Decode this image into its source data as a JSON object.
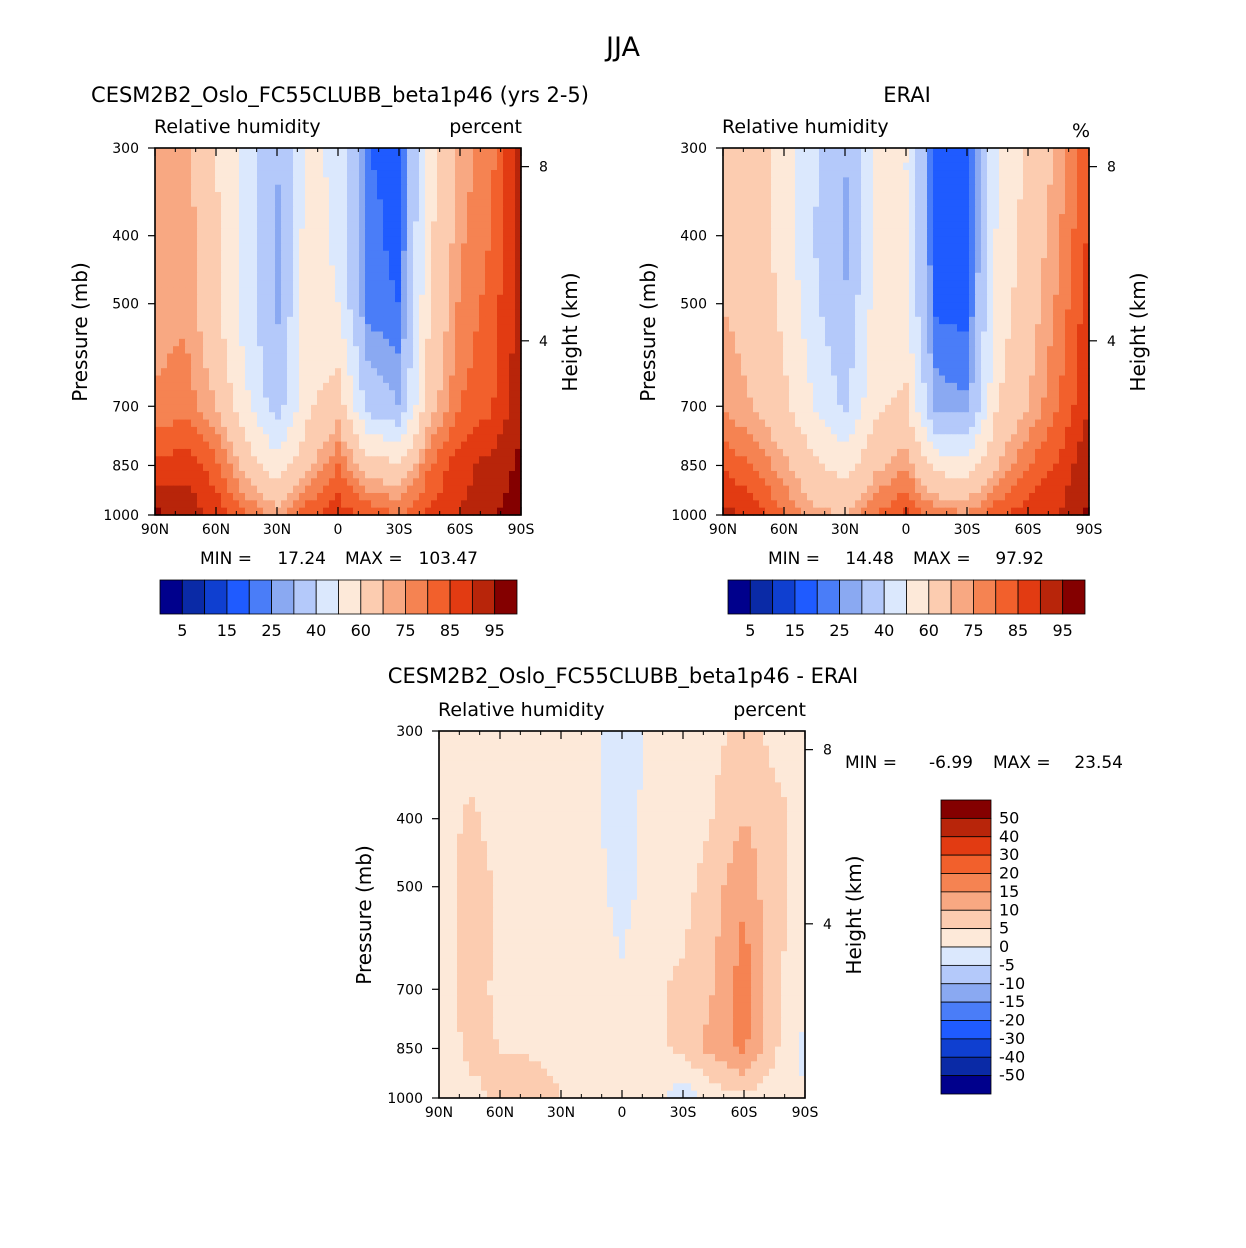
{
  "figure_title": "JJA",
  "colors": {
    "rh_levels": [
      "#00008c",
      "#0a2aa6",
      "#0f3fd0",
      "#1f5bff",
      "#4a7df8",
      "#8aa9f2",
      "#b4c9fa",
      "#dbe8fd",
      "#fde9d9",
      "#fcccb0",
      "#f8a882",
      "#f58352",
      "#f2602c",
      "#e23b12",
      "#b8250a",
      "#840000"
    ],
    "diff_levels": [
      "#00008c",
      "#0a2aa6",
      "#0f3fd0",
      "#1f5bff",
      "#4a7df8",
      "#8aa9f2",
      "#b4c9fa",
      "#dbe8fd",
      "#fde9d9",
      "#fcccb0",
      "#f8a882",
      "#f58352",
      "#f2602c",
      "#e23b12",
      "#b8250a",
      "#840000"
    ]
  },
  "chart_data": [
    {
      "name": "model",
      "type": "heatmap",
      "title": "CESM2B2_Oslo_FC55CLUBB_beta1p46 (yrs 2-5)",
      "left_subtitle": "Relative humidity",
      "right_subtitle": "percent",
      "xlabel": "",
      "ylabel": "Pressure (mb)",
      "y2label": "Height (km)",
      "x_ticks": [
        "90N",
        "60N",
        "30N",
        "0",
        "30S",
        "60S",
        "90S"
      ],
      "y_ticks": [
        "300",
        "400",
        "500",
        "700",
        "850",
        "1000"
      ],
      "y_tick_values": [
        300,
        400,
        500,
        700,
        850,
        1000
      ],
      "y2_ticks": [
        "8",
        "4"
      ],
      "y2_tick_values": [
        8,
        4
      ],
      "ylim": [
        1000,
        300
      ],
      "xlim": [
        90,
        -90
      ],
      "stats": {
        "min_label": "MIN =",
        "min": "17.24",
        "max_label": "MAX =",
        "max": "103.47"
      },
      "colorbar_labels": [
        "5",
        "15",
        "25",
        "40",
        "60",
        "75",
        "85",
        "95"
      ],
      "field": {
        "lat": [
          90,
          75,
          60,
          45,
          30,
          15,
          0,
          -15,
          -30,
          -45,
          -60,
          -75,
          -90
        ],
        "plev": [
          300,
          400,
          500,
          700,
          850,
          1000
        ],
        "values": [
          [
            70,
            72,
            60,
            48,
            30,
            52,
            48,
            20,
            18,
            55,
            72,
            78,
            92
          ],
          [
            72,
            74,
            62,
            44,
            28,
            55,
            48,
            22,
            18,
            58,
            74,
            80,
            92
          ],
          [
            72,
            74,
            62,
            44,
            28,
            55,
            50,
            22,
            20,
            60,
            76,
            82,
            92
          ],
          [
            76,
            78,
            70,
            52,
            34,
            58,
            66,
            36,
            30,
            66,
            80,
            84,
            94
          ],
          [
            86,
            88,
            82,
            66,
            54,
            68,
            80,
            66,
            62,
            80,
            88,
            92,
            96
          ],
          [
            96,
            94,
            88,
            80,
            74,
            84,
            88,
            84,
            80,
            86,
            90,
            94,
            98
          ]
        ]
      }
    },
    {
      "name": "obs",
      "type": "heatmap",
      "title": "ERAI",
      "left_subtitle": "Relative humidity",
      "right_subtitle": "%",
      "xlabel": "",
      "ylabel": "Pressure (mb)",
      "y2label": "Height (km)",
      "x_ticks": [
        "90N",
        "60N",
        "30N",
        "0",
        "30S",
        "60S",
        "90S"
      ],
      "y_ticks": [
        "300",
        "400",
        "500",
        "700",
        "850",
        "1000"
      ],
      "y_tick_values": [
        300,
        400,
        500,
        700,
        850,
        1000
      ],
      "y2_ticks": [
        "8",
        "4"
      ],
      "y2_tick_values": [
        8,
        4
      ],
      "ylim": [
        1000,
        300
      ],
      "xlim": [
        90,
        -90
      ],
      "stats": {
        "min_label": "MIN =",
        "min": "14.48",
        "max_label": "MAX =",
        "max": "97.92"
      },
      "colorbar_labels": [
        "5",
        "15",
        "25",
        "40",
        "60",
        "75",
        "85",
        "95"
      ],
      "field": {
        "lat": [
          90,
          75,
          60,
          45,
          30,
          15,
          0,
          -15,
          -30,
          -45,
          -60,
          -75,
          -90
        ],
        "plev": [
          300,
          400,
          500,
          700,
          850,
          1000
        ],
        "values": [
          [
            66,
            68,
            56,
            42,
            30,
            52,
            50,
            18,
            16,
            50,
            62,
            72,
            86
          ],
          [
            70,
            66,
            56,
            40,
            28,
            52,
            50,
            18,
            16,
            52,
            64,
            74,
            86
          ],
          [
            70,
            66,
            58,
            42,
            30,
            54,
            52,
            18,
            18,
            54,
            66,
            76,
            88
          ],
          [
            74,
            70,
            62,
            50,
            38,
            58,
            62,
            28,
            26,
            60,
            70,
            80,
            90
          ],
          [
            84,
            80,
            72,
            62,
            56,
            68,
            74,
            56,
            56,
            70,
            80,
            86,
            94
          ],
          [
            92,
            88,
            80,
            72,
            70,
            80,
            86,
            78,
            76,
            84,
            88,
            90,
            96
          ]
        ]
      }
    },
    {
      "name": "difference",
      "type": "heatmap",
      "title": "CESM2B2_Oslo_FC55CLUBB_beta1p46 - ERAI",
      "left_subtitle": "Relative humidity",
      "right_subtitle": "percent",
      "xlabel": "",
      "ylabel": "Pressure (mb)",
      "y2label": "Height (km)",
      "x_ticks": [
        "90N",
        "60N",
        "30N",
        "0",
        "30S",
        "60S",
        "90S"
      ],
      "y_ticks": [
        "300",
        "400",
        "500",
        "700",
        "850",
        "1000"
      ],
      "y_tick_values": [
        300,
        400,
        500,
        700,
        850,
        1000
      ],
      "y2_ticks": [
        "8",
        "4"
      ],
      "y2_tick_values": [
        8,
        4
      ],
      "ylim": [
        1000,
        300
      ],
      "xlim": [
        90,
        -90
      ],
      "stats": {
        "min_label": "MIN =",
        "min": "-6.99",
        "max_label": "MAX =",
        "max": "23.54"
      },
      "colorbar_labels": [
        "50",
        "40",
        "30",
        "20",
        "15",
        "10",
        "5",
        "0",
        "-5",
        "-10",
        "-15",
        "-20",
        "-30",
        "-40",
        "-50"
      ],
      "field": {
        "lat": [
          90,
          75,
          60,
          45,
          30,
          15,
          0,
          -15,
          -30,
          -45,
          -60,
          -75,
          -90
        ],
        "plev": [
          300,
          400,
          500,
          700,
          850,
          1000
        ],
        "values": [
          [
            2,
            3,
            3,
            2,
            1,
            1,
            -3,
            1,
            2,
            4,
            6,
            4,
            3
          ],
          [
            2,
            6,
            3,
            2,
            1,
            1,
            -2,
            2,
            2,
            5,
            10,
            6,
            4
          ],
          [
            2,
            8,
            4,
            2,
            1,
            2,
            -2,
            2,
            3,
            8,
            14,
            6,
            4
          ],
          [
            3,
            7,
            4,
            3,
            2,
            2,
            1,
            4,
            6,
            10,
            18,
            6,
            2
          ],
          [
            2,
            6,
            5,
            4,
            2,
            1,
            2,
            4,
            6,
            12,
            16,
            6,
            -2
          ],
          [
            2,
            4,
            6,
            10,
            5,
            2,
            1,
            2,
            -3,
            2,
            4,
            2,
            1
          ]
        ]
      }
    }
  ]
}
